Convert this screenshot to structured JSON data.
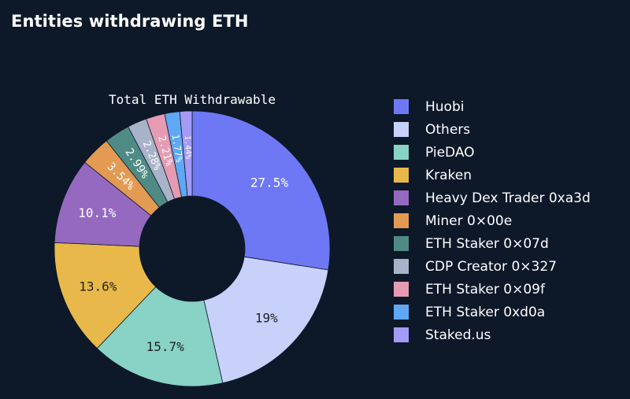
{
  "page": {
    "title": "Entities withdrawing ETH"
  },
  "chart_data": {
    "type": "pie",
    "title": "Total ETH Withdrawable",
    "donut": true,
    "legend_position": "right",
    "slices": [
      {
        "label": "Huobi",
        "value": 27.5,
        "display": "27.5%",
        "color": "#6e78f5"
      },
      {
        "label": "Others",
        "value": 19.0,
        "display": "19%",
        "color": "#c7d1fa"
      },
      {
        "label": "PieDAO",
        "value": 15.7,
        "display": "15.7%",
        "color": "#88d2c6"
      },
      {
        "label": "Kraken",
        "value": 13.6,
        "display": "13.6%",
        "color": "#e8b94a"
      },
      {
        "label": "Heavy Dex Trader 0xa3d",
        "value": 10.1,
        "display": "10.1%",
        "color": "#9569c0"
      },
      {
        "label": "Miner 0×00e",
        "value": 3.54,
        "display": "3.54%",
        "color": "#e39a53"
      },
      {
        "label": "ETH Staker 0×07d",
        "value": 2.99,
        "display": "2.99%",
        "color": "#4f8b84"
      },
      {
        "label": "CDP Creator 0×327",
        "value": 2.28,
        "display": "2.28%",
        "color": "#a8b3c9"
      },
      {
        "label": "ETH Staker 0×09f",
        "value": 2.21,
        "display": "2.21%",
        "color": "#e69bb2"
      },
      {
        "label": "ETH Staker 0xd0a",
        "value": 1.77,
        "display": "1.77%",
        "color": "#5ea8f5"
      },
      {
        "label": "Staked.us",
        "value": 1.44,
        "display": "1.44%",
        "color": "#a59af5"
      }
    ]
  }
}
